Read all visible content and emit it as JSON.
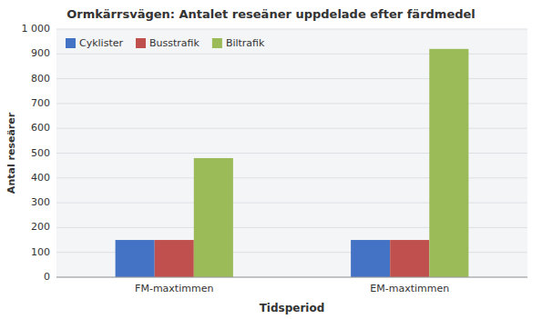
{
  "chart_data": {
    "type": "bar",
    "title": "Ormkärrsvägen: Antalet reseäner uppdelade efter färdmedel",
    "x_label": "Tidsperiod",
    "y_label": "Antal reseärer",
    "categories": [
      "FM-maxtimmen",
      "EM-maxtimmen"
    ],
    "series": [
      {
        "name": "Cyklister",
        "color": "#4472C4",
        "values": [
          150,
          150
        ]
      },
      {
        "name": "Busstrafik",
        "color": "#C0504D",
        "values": [
          150,
          150
        ]
      },
      {
        "name": "Biltrafik",
        "color": "#9BBB59",
        "values": [
          480,
          920
        ]
      }
    ],
    "ylim": [
      0,
      1000
    ],
    "yticks": [
      0,
      100,
      200,
      300,
      400,
      500,
      600,
      700,
      800,
      900,
      {
        "value": 1000,
        "label": "1 000"
      }
    ],
    "grid": true,
    "legend": "upper left"
  }
}
